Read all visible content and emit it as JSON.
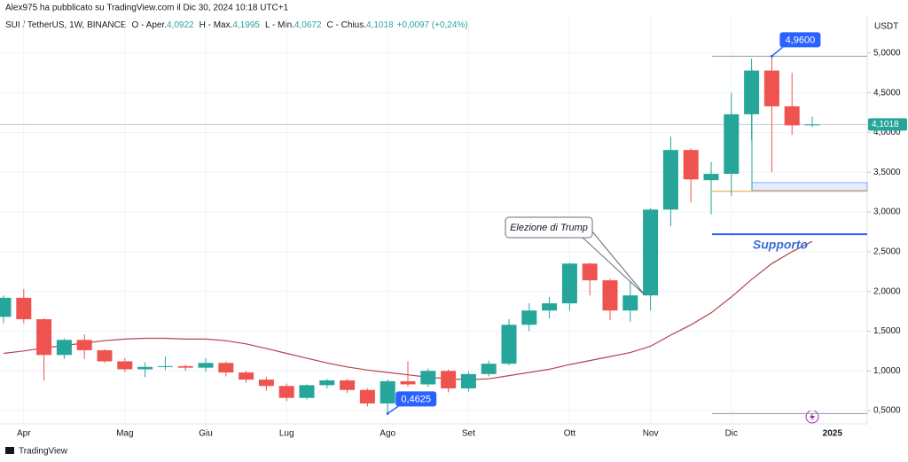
{
  "header": "Alex975 ha pubblicato su TradingView.com il Dic 30, 2024 10:18 UTC+1",
  "legend": {
    "symbol": "SUI / TetherUS, 1W, BINANCE",
    "ohlc": [
      {
        "label": "O - Aper.",
        "value": "4,0922"
      },
      {
        "label": "H - Max.",
        "value": "4,1995"
      },
      {
        "label": "L - Min.",
        "value": "4,0672"
      },
      {
        "label": "C - Chius.",
        "value": "4,1018"
      }
    ],
    "change": "+0,0097 (+0,24%)"
  },
  "logo": "TradingView",
  "chart_data": {
    "type": "candlestick",
    "y_unit": "USDT",
    "up_color": "#26a69a",
    "down_color": "#ef5350",
    "categories": [
      null,
      "Apr",
      null,
      null,
      null,
      null,
      "Mag",
      null,
      null,
      null,
      "Giu",
      null,
      null,
      null,
      "Lug",
      null,
      null,
      null,
      null,
      "Ago",
      null,
      null,
      null,
      "Set",
      null,
      null,
      null,
      null,
      "Ott",
      null,
      null,
      null,
      "Nov",
      null,
      null,
      null,
      "Dic",
      null,
      null,
      null,
      null
    ],
    "next_period_label": "2025",
    "open": [
      1.68,
      1.92,
      1.65,
      1.2,
      1.39,
      1.26,
      1.12,
      1.02,
      1.05,
      1.06,
      1.04,
      1.1,
      0.98,
      0.89,
      0.81,
      0.66,
      0.82,
      0.88,
      0.76,
      0.59,
      0.87,
      0.83,
      1.0,
      0.78,
      0.96,
      1.09,
      1.58,
      1.76,
      1.85,
      2.35,
      2.14,
      1.76,
      1.95,
      3.03,
      3.78,
      3.4,
      3.48,
      4.23,
      4.78,
      4.33,
      4.0922
    ],
    "high": [
      1.95,
      2.03,
      1.66,
      1.41,
      1.46,
      1.27,
      1.16,
      1.11,
      1.18,
      1.08,
      1.16,
      1.12,
      1.0,
      0.92,
      0.84,
      0.83,
      0.9,
      0.9,
      0.78,
      0.89,
      1.12,
      1.03,
      1.02,
      0.99,
      1.13,
      1.65,
      1.85,
      1.93,
      2.36,
      2.36,
      2.16,
      2.13,
      3.05,
      3.95,
      3.8,
      3.63,
      4.5,
      4.93,
      4.96,
      4.75,
      4.1995
    ],
    "low": [
      1.6,
      1.6,
      0.88,
      1.15,
      1.15,
      1.1,
      0.99,
      0.92,
      1.01,
      1.0,
      0.99,
      0.93,
      0.85,
      0.75,
      0.62,
      0.64,
      0.78,
      0.72,
      0.55,
      0.4625,
      0.8,
      0.8,
      0.73,
      0.74,
      0.93,
      1.07,
      1.5,
      1.66,
      1.76,
      1.95,
      1.64,
      1.62,
      1.76,
      2.82,
      3.12,
      2.97,
      3.2,
      3.9,
      3.5,
      3.97,
      4.0672
    ],
    "close": [
      1.92,
      1.65,
      1.2,
      1.39,
      1.26,
      1.12,
      1.02,
      1.05,
      1.06,
      1.04,
      1.1,
      0.98,
      0.89,
      0.81,
      0.66,
      0.82,
      0.88,
      0.76,
      0.59,
      0.87,
      0.83,
      1.0,
      0.78,
      0.96,
      1.09,
      1.58,
      1.76,
      1.85,
      2.35,
      2.14,
      1.76,
      1.95,
      3.03,
      3.78,
      3.41,
      3.48,
      4.23,
      4.78,
      4.33,
      4.09,
      4.1018
    ],
    "ma": {
      "color": "#b2434f",
      "values": [
        1.22,
        1.25,
        1.29,
        1.32,
        1.35,
        1.38,
        1.4,
        1.41,
        1.41,
        1.4,
        1.4,
        1.38,
        1.34,
        1.28,
        1.22,
        1.16,
        1.1,
        1.05,
        1.01,
        0.98,
        0.95,
        0.92,
        0.9,
        0.89,
        0.9,
        0.94,
        0.98,
        1.02,
        1.08,
        1.13,
        1.18,
        1.23,
        1.31,
        1.45,
        1.58,
        1.73,
        1.93,
        2.15,
        2.35,
        2.5,
        2.63
      ]
    },
    "last_price": {
      "value": 4.1018,
      "label": "4,1018"
    },
    "ylim": [
      0.333,
      5.467
    ],
    "yticks": [
      {
        "value": 0.5,
        "label": "0,5000"
      },
      {
        "value": 1.0,
        "label": "1,0000"
      },
      {
        "value": 1.5,
        "label": "1,5000"
      },
      {
        "value": 2.0,
        "label": "2,0000"
      },
      {
        "value": 2.5,
        "label": "2,5000"
      },
      {
        "value": 3.0,
        "label": "3,0000"
      },
      {
        "value": 3.5,
        "label": "3,5000"
      },
      {
        "value": 4.0,
        "label": "4,0000"
      },
      {
        "value": 4.5,
        "label": "4,5000"
      },
      {
        "value": 5.0,
        "label": "5,0000"
      }
    ],
    "grid": true,
    "annotations": [
      {
        "text": "4,9600",
        "value": 4.96,
        "index": 38
      },
      {
        "text": "0,4625",
        "value": 0.4625,
        "index": 19
      }
    ],
    "levels": [
      {
        "value": 4.96,
        "color": "#9598a1"
      },
      {
        "value": 0.4625,
        "color": "#9598a1"
      },
      {
        "value": 2.72,
        "color": "#2962ff"
      },
      {
        "value": 3.26,
        "color": "#f0a030"
      }
    ],
    "zone": {
      "top": 3.37,
      "bottom": 3.27,
      "color": "#2962ff"
    },
    "callout": {
      "text": "Elezione di Trump",
      "index": 32,
      "value": 1.95
    },
    "support_label": "Supporto"
  }
}
